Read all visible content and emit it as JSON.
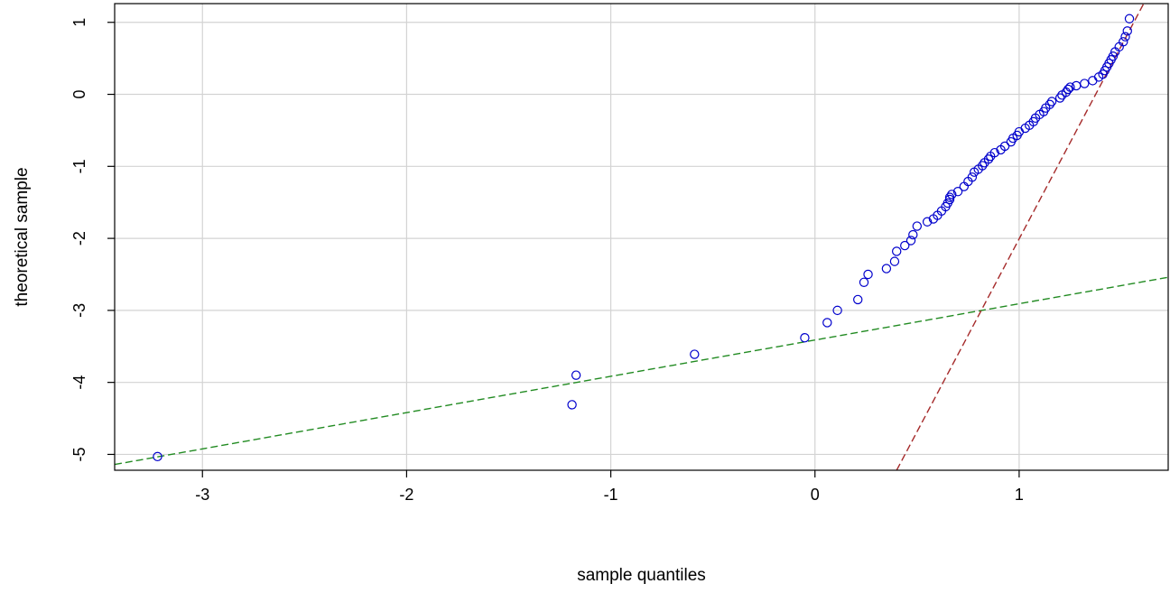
{
  "chart_data": {
    "type": "scatter",
    "xlabel": "sample quantiles",
    "ylabel": "theoretical sample",
    "xlim": [
      -3.43,
      1.73
    ],
    "ylim": [
      -5.22,
      1.26
    ],
    "grid": true,
    "x_ticks": [
      -3,
      -2,
      -1,
      0,
      1
    ],
    "y_ticks": [
      -5,
      -4,
      -3,
      -2,
      -1,
      0,
      1
    ],
    "colors": {
      "points": "#0000cc",
      "fit_line": "#228b22",
      "ref_line": "#a52a2a",
      "grid": "#d3d3d3"
    },
    "series": [
      {
        "kind": "points",
        "x": [
          -3.22,
          -1.19,
          -1.17,
          -0.59,
          -0.05,
          0.06,
          0.11,
          0.21,
          0.24,
          0.26,
          0.35,
          0.39,
          0.4,
          0.44,
          0.47,
          0.48,
          0.5,
          0.55,
          0.58,
          0.6,
          0.62,
          0.64,
          0.65,
          0.66,
          0.66,
          0.67,
          0.7,
          0.73,
          0.75,
          0.77,
          0.78,
          0.8,
          0.82,
          0.83,
          0.85,
          0.86,
          0.88,
          0.91,
          0.93,
          0.96,
          0.97,
          0.99,
          1.0,
          1.03,
          1.05,
          1.07,
          1.08,
          1.1,
          1.12,
          1.13,
          1.15,
          1.16,
          1.2,
          1.21,
          1.23,
          1.24,
          1.25,
          1.28,
          1.32,
          1.36,
          1.39,
          1.41,
          1.42,
          1.43,
          1.44,
          1.45,
          1.46,
          1.47,
          1.49,
          1.51,
          1.52,
          1.53,
          1.54
        ],
        "y": [
          -5.03,
          -4.31,
          -3.9,
          -3.61,
          -3.38,
          -3.17,
          -3.0,
          -2.85,
          -2.61,
          -2.5,
          -2.42,
          -2.32,
          -2.18,
          -2.1,
          -2.03,
          -1.95,
          -1.83,
          -1.77,
          -1.73,
          -1.68,
          -1.62,
          -1.56,
          -1.51,
          -1.46,
          -1.43,
          -1.39,
          -1.35,
          -1.28,
          -1.21,
          -1.15,
          -1.08,
          -1.04,
          -0.99,
          -0.95,
          -0.9,
          -0.86,
          -0.81,
          -0.77,
          -0.72,
          -0.66,
          -0.61,
          -0.57,
          -0.52,
          -0.47,
          -0.43,
          -0.38,
          -0.33,
          -0.28,
          -0.24,
          -0.19,
          -0.14,
          -0.1,
          -0.05,
          -0.01,
          0.03,
          0.07,
          0.1,
          0.12,
          0.15,
          0.19,
          0.24,
          0.28,
          0.33,
          0.38,
          0.43,
          0.48,
          0.53,
          0.59,
          0.66,
          0.73,
          0.8,
          0.88,
          1.05
        ]
      },
      {
        "kind": "line",
        "style": "dashed",
        "color_key": "fit_line",
        "x": [
          -3.43,
          1.73
        ],
        "y": [
          -5.14,
          -2.54
        ]
      },
      {
        "kind": "line",
        "style": "dashed",
        "color_key": "ref_line",
        "x": [
          0.4,
          1.61
        ],
        "y": [
          -5.22,
          1.26
        ]
      }
    ]
  }
}
